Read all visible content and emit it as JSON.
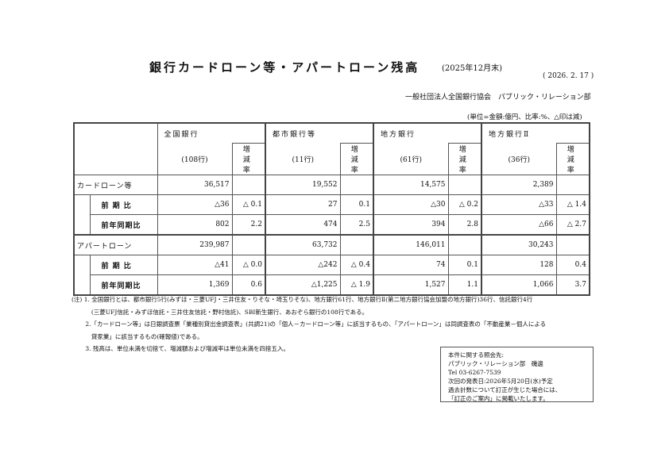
{
  "header": {
    "title": "銀行カードローン等・アパートローン残高",
    "title_period": "(2025年12月末)",
    "issue_date": "( 2026. 2. 17 )",
    "organization": "一般社団法人全国銀行協会　パブリック・リレーション部",
    "unit_note": "(単位=金額:億円、比率:%、△印は減)"
  },
  "table": {
    "groups": [
      {
        "name": "全国銀行",
        "count": "(108行)"
      },
      {
        "name": "都市銀行等",
        "count": "(11行)"
      },
      {
        "name": "地方銀行",
        "count": "(61行)"
      },
      {
        "name": "地方銀行Ⅱ",
        "count": "(36行)"
      }
    ],
    "rate_header": "増 減 率",
    "rows": [
      {
        "label": "カードローン等",
        "type": "main",
        "cells": [
          "36,517",
          "",
          "19,552",
          "",
          "14,575",
          "",
          "2,389",
          ""
        ]
      },
      {
        "label": "前 期 比",
        "type": "sub",
        "cells": [
          "△36",
          "△ 0.1",
          "27",
          "0.1",
          "△30",
          "△ 0.2",
          "△33",
          "△ 1.4"
        ]
      },
      {
        "label": "前年同期比",
        "type": "sub",
        "cells": [
          "802",
          "2.2",
          "474",
          "2.5",
          "394",
          "2.8",
          "△66",
          "△ 2.7"
        ]
      },
      {
        "label": "アパートローン",
        "type": "main",
        "cells": [
          "239,987",
          "",
          "63,732",
          "",
          "146,011",
          "",
          "30,243",
          ""
        ]
      },
      {
        "label": "前 期 比",
        "type": "sub",
        "cells": [
          "△41",
          "△ 0.0",
          "△242",
          "△ 0.4",
          "74",
          "0.1",
          "128",
          "0.4"
        ]
      },
      {
        "label": "前年同期比",
        "type": "sub",
        "cells": [
          "1,369",
          "0.6",
          "△1,225",
          "△ 1.9",
          "1,527",
          "1.1",
          "1,066",
          "3.7"
        ]
      }
    ]
  },
  "notes": [
    "(注) 1. 全国銀行とは、都市銀行5行(みずほ・三菱UFJ・三井住友・りそな・埼玉りそな)、地方銀行61行、地方銀行Ⅱ(第二地方銀行協会加盟の地方銀行)36行、信託銀行4行",
    "　　　 (三菱UFJ信託・みずほ信託・三井住友信託・野村信託)、SBI新生銀行、あおぞら銀行の108行である。",
    "　　 2.「カードローン等」は日銀調査票「業種別貸出金調査表」(共調21)の「個人－カードローン等」に該当するもの、「アパートローン」は同調査表の「不動産業－個人による",
    "　　　 貸家業」に該当するもの(確報値)である。",
    "　　 3. 残高は、単位未満を切捨て、増減額および増減率は単位未満を四捨五入。"
  ],
  "contact": [
    "本件に関する照会先:",
    "パブリック・リレーション部　磯邊",
    "Tel 03-6267-7539",
    "次回の発表日:2026年5月20日(水)予定",
    "過去計数について訂正が生じた場合には、",
    "「訂正のご案内」に掲載いたします。"
  ]
}
